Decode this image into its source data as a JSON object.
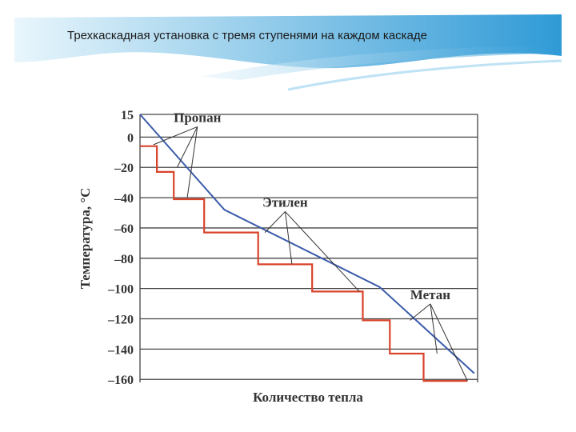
{
  "slide": {
    "title": "Трехкаскадная установка с тремя ступенями на каждом каскаде"
  },
  "colors": {
    "header_light": "#e9f6fc",
    "header_dark": "#2f9ad6",
    "refrigerant": "#d9432b",
    "process_line": "#3a5ba9",
    "grid": "#444444"
  },
  "chart_data": {
    "type": "line",
    "title": "",
    "xlabel": "Количество тепла",
    "ylabel": "Температура, °C",
    "ylim": [
      -162,
      15
    ],
    "yticks": [
      15,
      0,
      -20,
      -40,
      -60,
      -80,
      -100,
      -120,
      -140,
      -160
    ],
    "ytick_labels": [
      "15",
      "0",
      "–20",
      "–40",
      "–60",
      "–80",
      "–100",
      "–120",
      "–140",
      "–160"
    ],
    "xlim": [
      0,
      100
    ],
    "grid": true,
    "series": [
      {
        "name": "",
        "role": "cooled-stream",
        "x": [
          0,
          25,
          71,
          99
        ],
        "y": [
          15,
          -48,
          -99,
          -156
        ]
      },
      {
        "name": "",
        "role": "refrigerant-steps",
        "x": [
          0,
          5,
          5,
          10,
          10,
          19,
          19,
          35,
          35,
          51,
          51,
          66,
          66,
          74,
          74,
          84,
          84,
          92,
          92,
          97
        ],
        "y": [
          -6,
          -6,
          -23,
          -23,
          -41,
          -41,
          -63,
          -63,
          -84,
          -84,
          -102,
          -102,
          -121,
          -121,
          -143,
          -143,
          -161,
          -161,
          -161,
          -161
        ]
      }
    ],
    "annotations": [
      {
        "text": "Пропан",
        "x": 17,
        "y": 10,
        "points_to": [
          [
            4,
            -5
          ],
          [
            11,
            -20
          ],
          [
            14,
            -40
          ]
        ]
      },
      {
        "text": "Этилен",
        "x": 43,
        "y": -46,
        "points_to": [
          [
            37,
            -63
          ],
          [
            45,
            -84
          ],
          [
            65,
            -102
          ]
        ]
      },
      {
        "text": "Метан",
        "x": 86,
        "y": -107,
        "points_to": [
          [
            80,
            -121
          ],
          [
            88,
            -143
          ],
          [
            97,
            -161
          ]
        ]
      }
    ]
  }
}
